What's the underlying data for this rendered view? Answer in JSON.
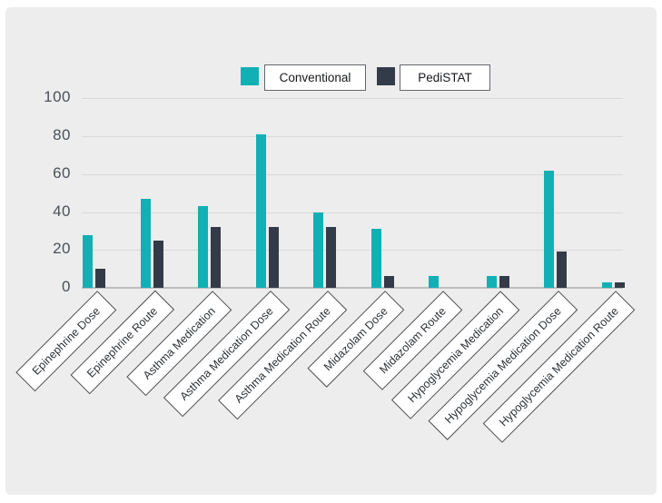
{
  "chart_data": {
    "type": "bar",
    "title": "",
    "xlabel": "",
    "ylabel": "",
    "categories": [
      "Epinephrine Dose",
      "Epinephrine Route",
      "Asthma Medication",
      "Asthma Medication Dose",
      "Asthma Medication Route",
      "Midazolam Dose",
      "Midazolam Route",
      "Hypoglycemia Medication",
      "Hypoglycemia Medication Dose",
      "Hypoglycemia Medication Route"
    ],
    "series": [
      {
        "name": "Conventional",
        "color": "#12b0b5",
        "values": [
          28,
          47,
          43,
          81,
          40,
          31,
          6,
          6,
          62,
          3
        ]
      },
      {
        "name": "PediSTAT",
        "color": "#343b48",
        "values": [
          10,
          25,
          32,
          32,
          32,
          6,
          0,
          6,
          19,
          3
        ]
      }
    ],
    "ylim": [
      0,
      100
    ],
    "yticks": [
      0,
      20,
      40,
      60,
      80,
      100
    ],
    "grid": true,
    "legend_position": "top"
  },
  "colors": {
    "page_background": "#ffffff",
    "panel_background": "#ededed",
    "gridline": "#d9d9d9",
    "axis_line": "#bdbdbd",
    "label_box_border": "#4d4d4d",
    "label_box_background": "#ffffff"
  }
}
